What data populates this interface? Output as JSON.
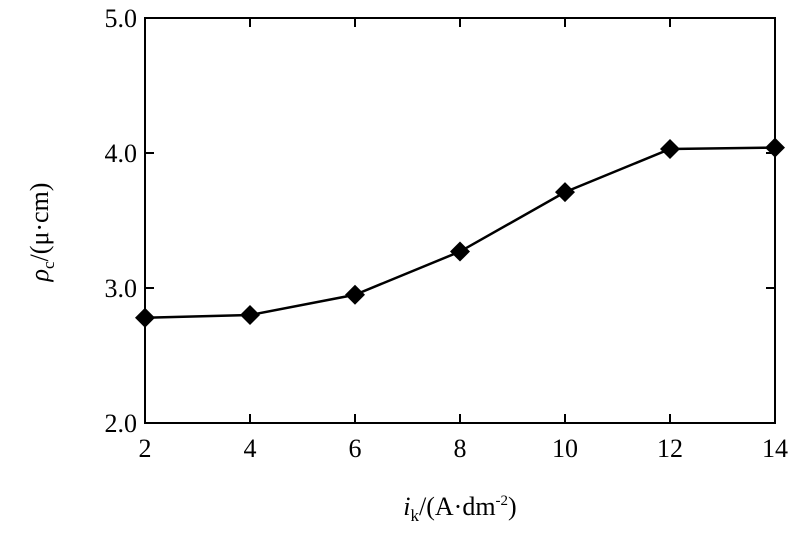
{
  "chart_data": {
    "type": "line",
    "x": [
      2,
      4,
      6,
      8,
      10,
      12,
      14
    ],
    "series": [
      {
        "values": [
          2.78,
          2.8,
          2.95,
          3.27,
          3.71,
          4.03,
          4.04
        ]
      }
    ],
    "xlabel": {
      "var": "i",
      "var_sub": "k",
      "unit_open": "/(A·dm",
      "unit_sup": "-2",
      "unit_close": ")"
    },
    "ylabel": {
      "var": "ρ",
      "var_sub": "c",
      "unit": "/(μ·cm)"
    },
    "xlim": [
      2,
      14
    ],
    "ylim": [
      2.0,
      5.0
    ],
    "xticks": [
      "2",
      "4",
      "6",
      "8",
      "10",
      "12",
      "14"
    ],
    "yticks": [
      "2.0",
      "3.0",
      "4.0",
      "5.0"
    ],
    "marker": "diamond",
    "line_color": "#000000",
    "grid": false
  }
}
